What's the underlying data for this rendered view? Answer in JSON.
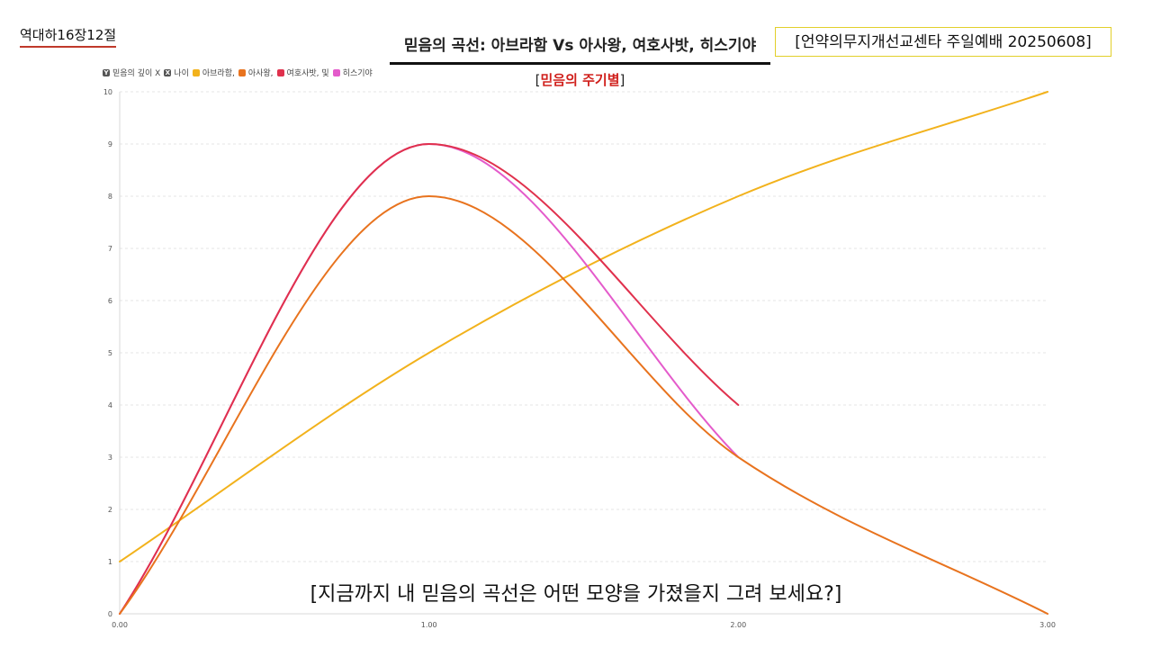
{
  "header": {
    "corner_label": "역대하16장12절",
    "title": "믿음의 곡선: 아브라함 Vs 아사왕, 여호사밧, 히스기야",
    "subtitle_open": "[",
    "subtitle_main": "믿음의 주기별",
    "subtitle_close": "]",
    "info_box": "[언약의무지개선교센타 주일예배 20250608]"
  },
  "footer": {
    "prompt": "[지금까지 내 믿음의 곡선은 어떤 모양을 가졌을지 그려 보세요?]"
  },
  "legend": {
    "y_badge": "Y",
    "y_label": "믿음의 깊이 X",
    "x_badge": "X",
    "x_label": "나이"
  },
  "chart_data": {
    "type": "line",
    "xlabel": "나이",
    "ylabel": "믿음의 깊이",
    "xlim": [
      0,
      3
    ],
    "ylim": [
      0,
      10
    ],
    "x_ticks": [
      "0.00",
      "1.00",
      "2.00",
      "3.00"
    ],
    "y_ticks": [
      "0",
      "1",
      "2",
      "3",
      "4",
      "5",
      "6",
      "7",
      "8",
      "9",
      "10"
    ],
    "grid": "horizontal-dashed",
    "legend_position": "top-left",
    "series": [
      {
        "name": "아브라함,",
        "color": "#f2b21c",
        "x": [
          0,
          1,
          2,
          3
        ],
        "y": [
          1,
          5,
          8,
          10
        ]
      },
      {
        "name": "아사왕,",
        "color": "#e8731e",
        "x": [
          0,
          1,
          2,
          3
        ],
        "y": [
          0,
          8,
          3,
          0
        ]
      },
      {
        "name": "여호사밧, 및",
        "color": "#e0314d",
        "x": [
          0,
          1,
          2
        ],
        "y": [
          0,
          9,
          4
        ]
      },
      {
        "name": "히스기야",
        "color": "#e45bcb",
        "x": [
          0,
          1,
          2
        ],
        "y": [
          0,
          9,
          3
        ]
      }
    ]
  }
}
